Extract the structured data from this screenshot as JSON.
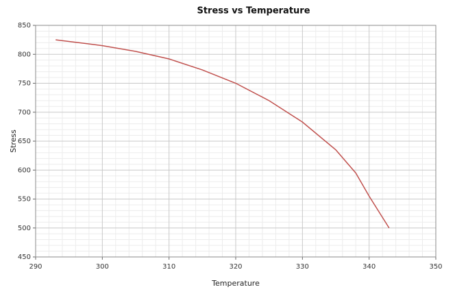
{
  "chart_data": {
    "type": "line",
    "title": "Stress vs Temperature",
    "x_label": "Temperature",
    "y_label": "Stress",
    "x": [
      293,
      300,
      305,
      310,
      315,
      320,
      325,
      330,
      335,
      338,
      340,
      343
    ],
    "series": [
      {
        "name": "Stress",
        "color": "#c0504d",
        "values": [
          825,
          815,
          805,
          792,
          773,
          750,
          720,
          683,
          635,
          595,
          555,
          500
        ]
      }
    ],
    "xlim": [
      290,
      350
    ],
    "xticks": [
      290,
      300,
      310,
      320,
      330,
      340,
      350
    ],
    "ylim": [
      450,
      850
    ],
    "yticks": [
      450,
      500,
      550,
      600,
      650,
      700,
      750,
      800,
      850
    ],
    "grid": true,
    "minor_grid": true
  }
}
